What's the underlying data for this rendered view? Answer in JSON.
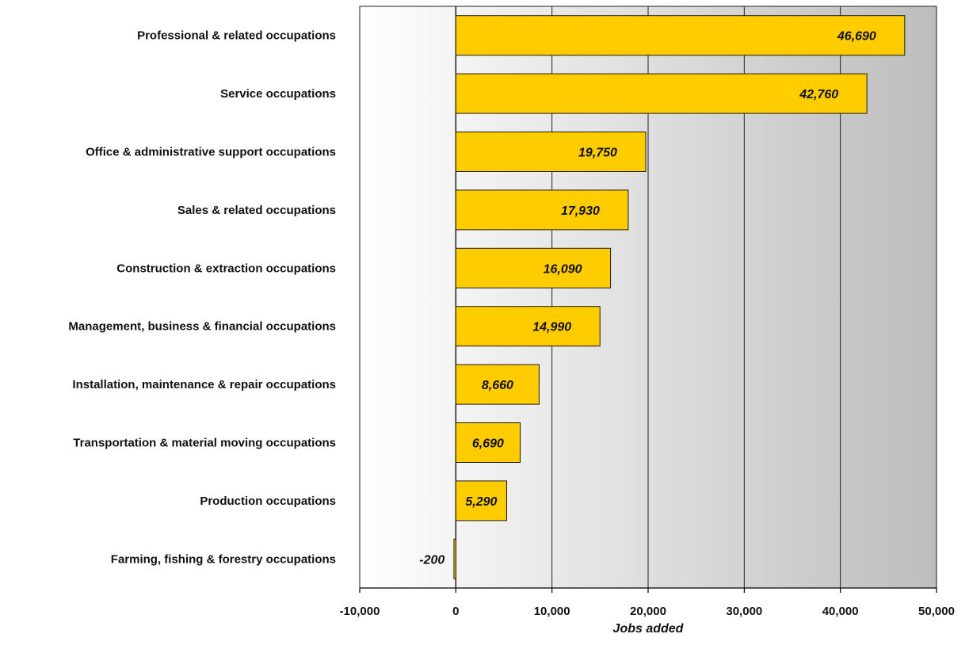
{
  "chart_data": {
    "type": "bar",
    "orientation": "horizontal",
    "categories": [
      "Professional & related occupations",
      "Service occupations",
      "Office & administrative support occupations",
      "Sales & related occupations",
      "Construction & extraction occupations",
      "Management, business & financial occupations",
      "Installation, maintenance & repair occupations",
      "Transportation & material moving occupations",
      "Production occupations",
      "Farming, fishing & forestry occupations"
    ],
    "values": [
      46690,
      42760,
      19750,
      17930,
      16090,
      14990,
      8660,
      6690,
      5290,
      -200
    ],
    "value_labels": [
      "46,690",
      "42,760",
      "19,750",
      "17,930",
      "16,090",
      "14,990",
      "8,660",
      "6,690",
      "5,290",
      "-200"
    ],
    "title": "",
    "xlabel": "Jobs added",
    "ylabel": "",
    "xlim": [
      -10000,
      50000
    ],
    "xticks": [
      -10000,
      0,
      10000,
      20000,
      30000,
      40000,
      50000
    ],
    "xtick_labels": [
      "-10,000",
      "0",
      "10,000",
      "20,000",
      "30,000",
      "40,000",
      "50,000"
    ],
    "grid": "vertical",
    "legend": "none",
    "colors": {
      "bar_fill": "#FFCC00",
      "bar_stroke": "#1a1a1a",
      "plot_bg_start": "#ffffff",
      "plot_bg_end": "#bdbdbd",
      "gridline": "#222222"
    }
  }
}
